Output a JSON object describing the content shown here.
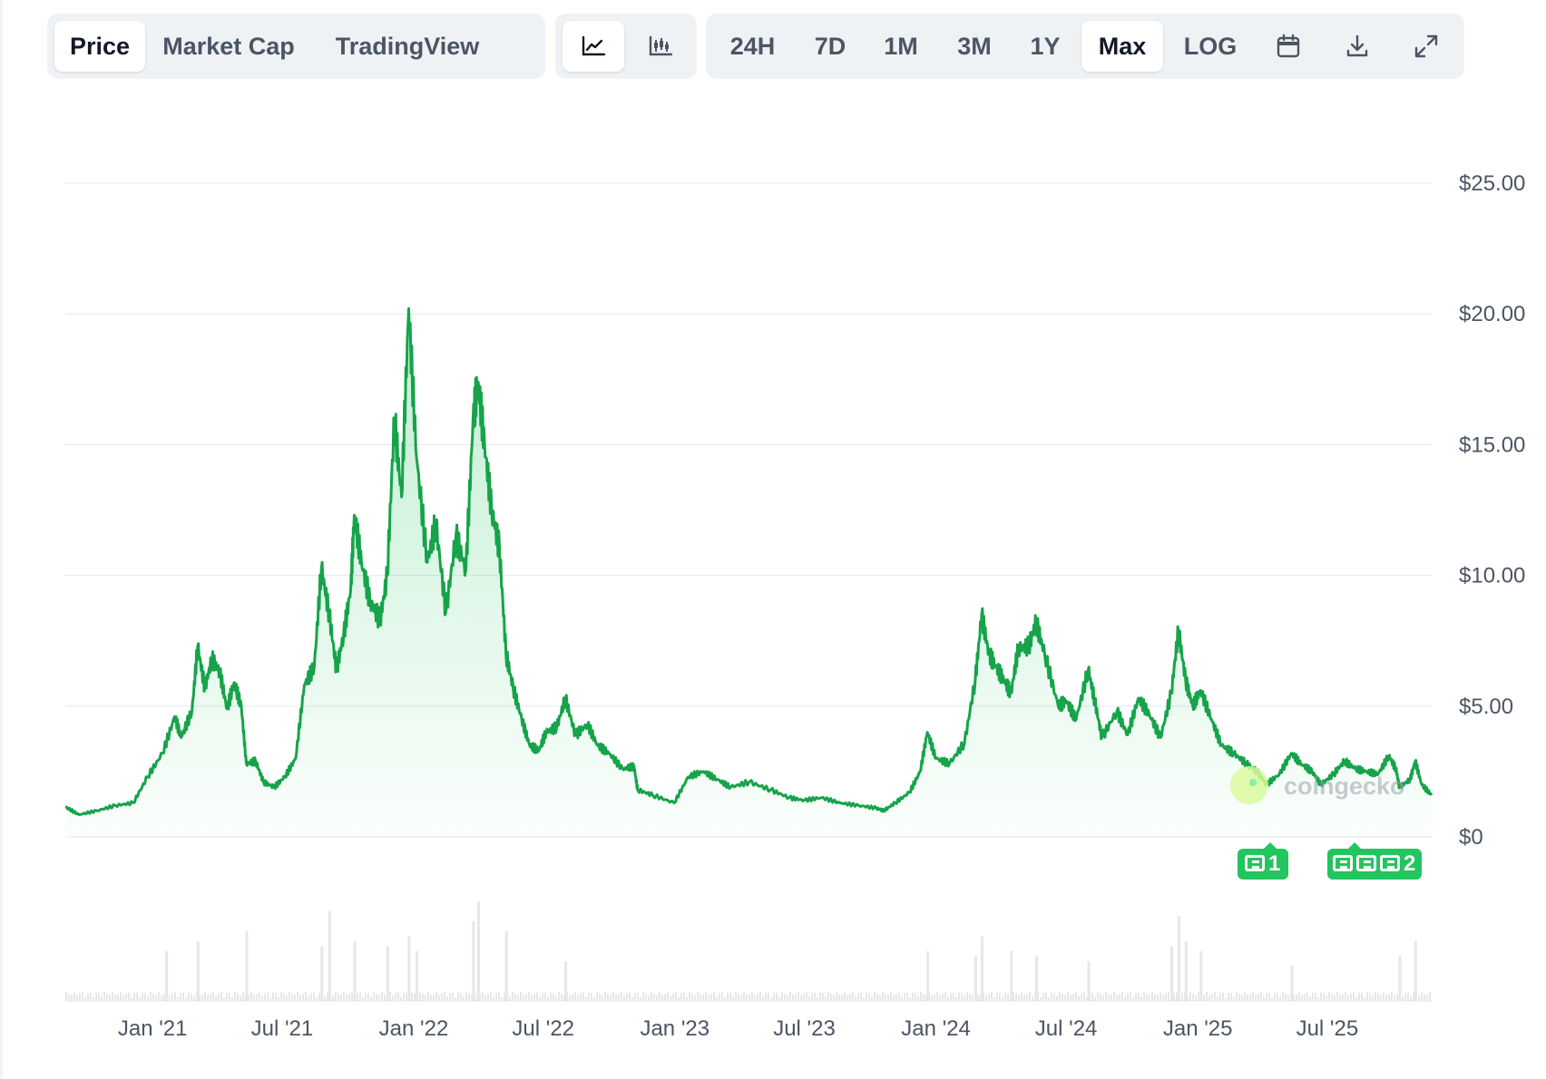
{
  "toolbar": {
    "views": [
      "Price",
      "Market Cap",
      "TradingView"
    ],
    "active_view": "Price",
    "chart_styles": [
      "line-chart-icon",
      "candlestick-icon"
    ],
    "active_style": "line-chart-icon",
    "ranges": [
      "24H",
      "7D",
      "1M",
      "3M",
      "1Y",
      "Max",
      "LOG"
    ],
    "active_range": "Max",
    "actions": [
      "calendar-icon",
      "download-icon",
      "expand-icon"
    ]
  },
  "watermark": "coingecko",
  "news_markers": [
    {
      "label": "1"
    },
    {
      "label": "2"
    }
  ],
  "colors": {
    "line": "#16a34a",
    "area": "#22c55e",
    "badge": "#22c55e",
    "grid": "#e5e7eb",
    "volume": "#e5e7eb"
  },
  "chart_data": {
    "type": "area",
    "x_start": "2020-09-01",
    "x_end": "2025-11-24",
    "yticks": [
      "$0",
      "$5.00",
      "$10.00",
      "$15.00",
      "$20.00",
      "$25.00"
    ],
    "ylim": [
      0,
      25
    ],
    "xticks": [
      {
        "label": "Jan '21",
        "date": "2021-01-01"
      },
      {
        "label": "Jul '21",
        "date": "2021-07-01"
      },
      {
        "label": "Jan '22",
        "date": "2022-01-01"
      },
      {
        "label": "Jul '22",
        "date": "2022-07-01"
      },
      {
        "label": "Jan '23",
        "date": "2023-01-01"
      },
      {
        "label": "Jul '23",
        "date": "2023-07-01"
      },
      {
        "label": "Jan '24",
        "date": "2024-01-01"
      },
      {
        "label": "Jul '24",
        "date": "2024-07-01"
      },
      {
        "label": "Jan '25",
        "date": "2025-01-01"
      },
      {
        "label": "Jul '25",
        "date": "2025-07-01"
      }
    ],
    "grid": true,
    "volume_subchart": true,
    "price": [
      [
        "2020-09-01",
        1.15
      ],
      [
        "2020-09-20",
        0.85
      ],
      [
        "2020-10-15",
        1.0
      ],
      [
        "2020-11-10",
        1.2
      ],
      [
        "2020-12-05",
        1.3
      ],
      [
        "2020-12-25",
        2.3
      ],
      [
        "2021-01-15",
        3.2
      ],
      [
        "2021-02-01",
        4.6
      ],
      [
        "2021-02-10",
        3.8
      ],
      [
        "2021-02-25",
        4.8
      ],
      [
        "2021-03-05",
        7.3
      ],
      [
        "2021-03-15",
        5.7
      ],
      [
        "2021-03-25",
        6.8
      ],
      [
        "2021-04-05",
        6.3
      ],
      [
        "2021-04-15",
        4.9
      ],
      [
        "2021-04-25",
        5.9
      ],
      [
        "2021-05-05",
        5.0
      ],
      [
        "2021-05-12",
        2.8
      ],
      [
        "2021-05-25",
        2.9
      ],
      [
        "2021-06-05",
        2.1
      ],
      [
        "2021-06-20",
        1.9
      ],
      [
        "2021-07-05",
        2.3
      ],
      [
        "2021-07-20",
        3.0
      ],
      [
        "2021-08-01",
        5.8
      ],
      [
        "2021-08-15",
        6.5
      ],
      [
        "2021-08-25",
        10.3
      ],
      [
        "2021-09-05",
        8.5
      ],
      [
        "2021-09-15",
        6.4
      ],
      [
        "2021-09-25",
        7.7
      ],
      [
        "2021-10-05",
        9.5
      ],
      [
        "2021-10-10",
        12.3
      ],
      [
        "2021-10-20",
        10.5
      ],
      [
        "2021-11-01",
        9.0
      ],
      [
        "2021-11-15",
        8.3
      ],
      [
        "2021-11-25",
        10.0
      ],
      [
        "2021-12-05",
        16.0
      ],
      [
        "2021-12-15",
        13.0
      ],
      [
        "2021-12-25",
        20.2
      ],
      [
        "2022-01-05",
        14.5
      ],
      [
        "2022-01-20",
        10.5
      ],
      [
        "2022-02-01",
        12.0
      ],
      [
        "2022-02-15",
        8.6
      ],
      [
        "2022-03-01",
        11.5
      ],
      [
        "2022-03-15",
        10.2
      ],
      [
        "2022-03-25",
        16.0
      ],
      [
        "2022-04-01",
        17.4
      ],
      [
        "2022-04-10",
        15.0
      ],
      [
        "2022-04-20",
        12.5
      ],
      [
        "2022-05-01",
        11.0
      ],
      [
        "2022-05-10",
        7.0
      ],
      [
        "2022-05-20",
        5.7
      ],
      [
        "2022-06-01",
        4.5
      ],
      [
        "2022-06-12",
        3.5
      ],
      [
        "2022-06-25",
        3.3
      ],
      [
        "2022-07-05",
        4.0
      ],
      [
        "2022-07-20",
        4.2
      ],
      [
        "2022-08-01",
        5.3
      ],
      [
        "2022-08-15",
        3.9
      ],
      [
        "2022-09-01",
        4.3
      ],
      [
        "2022-09-15",
        3.5
      ],
      [
        "2022-10-01",
        3.2
      ],
      [
        "2022-10-20",
        2.6
      ],
      [
        "2022-11-05",
        2.7
      ],
      [
        "2022-11-10",
        1.8
      ],
      [
        "2022-12-01",
        1.6
      ],
      [
        "2022-12-31",
        1.3
      ],
      [
        "2023-01-20",
        2.3
      ],
      [
        "2023-02-10",
        2.5
      ],
      [
        "2023-03-01",
        2.2
      ],
      [
        "2023-03-20",
        1.9
      ],
      [
        "2023-04-15",
        2.1
      ],
      [
        "2023-05-15",
        1.8
      ],
      [
        "2023-06-10",
        1.5
      ],
      [
        "2023-07-01",
        1.4
      ],
      [
        "2023-07-25",
        1.5
      ],
      [
        "2023-08-20",
        1.3
      ],
      [
        "2023-09-15",
        1.2
      ],
      [
        "2023-10-10",
        1.1
      ],
      [
        "2023-10-20",
        1.0
      ],
      [
        "2023-11-05",
        1.3
      ],
      [
        "2023-11-25",
        1.7
      ],
      [
        "2023-12-10",
        2.5
      ],
      [
        "2023-12-20",
        4.0
      ],
      [
        "2024-01-01",
        3.0
      ],
      [
        "2024-01-20",
        2.8
      ],
      [
        "2024-02-10",
        3.6
      ],
      [
        "2024-02-25",
        6.0
      ],
      [
        "2024-03-05",
        8.5
      ],
      [
        "2024-03-15",
        7.0
      ],
      [
        "2024-03-25",
        6.5
      ],
      [
        "2024-04-05",
        6.0
      ],
      [
        "2024-04-15",
        5.5
      ],
      [
        "2024-04-25",
        7.2
      ],
      [
        "2024-05-10",
        7.3
      ],
      [
        "2024-05-20",
        8.2
      ],
      [
        "2024-06-01",
        7.0
      ],
      [
        "2024-06-20",
        5.0
      ],
      [
        "2024-07-01",
        5.2
      ],
      [
        "2024-07-15",
        4.5
      ],
      [
        "2024-08-01",
        6.4
      ],
      [
        "2024-08-10",
        5.2
      ],
      [
        "2024-08-20",
        3.8
      ],
      [
        "2024-09-10",
        4.8
      ],
      [
        "2024-09-25",
        3.9
      ],
      [
        "2024-10-10",
        5.3
      ],
      [
        "2024-10-25",
        4.7
      ],
      [
        "2024-11-10",
        3.8
      ],
      [
        "2024-11-25",
        5.5
      ],
      [
        "2024-12-05",
        7.9
      ],
      [
        "2024-12-15",
        6.0
      ],
      [
        "2024-12-25",
        5.0
      ],
      [
        "2025-01-05",
        5.6
      ],
      [
        "2025-01-20",
        4.5
      ],
      [
        "2025-02-03",
        3.5
      ],
      [
        "2025-02-20",
        3.2
      ],
      [
        "2025-03-10",
        2.8
      ],
      [
        "2025-03-25",
        2.5
      ],
      [
        "2025-04-07",
        2.0
      ],
      [
        "2025-04-25",
        2.4
      ],
      [
        "2025-05-12",
        3.2
      ],
      [
        "2025-05-25",
        2.8
      ],
      [
        "2025-06-10",
        2.5
      ],
      [
        "2025-06-22",
        2.0
      ],
      [
        "2025-07-10",
        2.4
      ],
      [
        "2025-07-25",
        2.9
      ],
      [
        "2025-08-10",
        2.6
      ],
      [
        "2025-08-25",
        2.5
      ],
      [
        "2025-09-10",
        2.4
      ],
      [
        "2025-09-25",
        3.1
      ],
      [
        "2025-10-05",
        2.6
      ],
      [
        "2025-10-10",
        1.9
      ],
      [
        "2025-10-25",
        2.2
      ],
      [
        "2025-11-01",
        2.9
      ],
      [
        "2025-11-10",
        2.0
      ],
      [
        "2025-11-24",
        1.6
      ]
    ],
    "volume_spikes": [
      [
        "2021-01-20",
        0.5
      ],
      [
        "2021-03-05",
        0.6
      ],
      [
        "2021-05-12",
        0.7
      ],
      [
        "2021-08-25",
        0.55
      ],
      [
        "2021-09-05",
        0.9
      ],
      [
        "2021-10-10",
        0.6
      ],
      [
        "2021-11-25",
        0.55
      ],
      [
        "2021-12-25",
        0.65
      ],
      [
        "2022-01-05",
        0.5
      ],
      [
        "2022-03-25",
        0.8
      ],
      [
        "2022-04-01",
        1.0
      ],
      [
        "2022-05-10",
        0.7
      ],
      [
        "2022-08-01",
        0.4
      ],
      [
        "2023-12-20",
        0.5
      ],
      [
        "2024-02-25",
        0.45
      ],
      [
        "2024-03-05",
        0.65
      ],
      [
        "2024-04-15",
        0.5
      ],
      [
        "2024-05-20",
        0.45
      ],
      [
        "2024-08-01",
        0.4
      ],
      [
        "2024-11-25",
        0.55
      ],
      [
        "2024-12-05",
        0.85
      ],
      [
        "2024-12-15",
        0.6
      ],
      [
        "2025-01-05",
        0.5
      ],
      [
        "2025-05-12",
        0.35
      ],
      [
        "2025-10-10",
        0.45
      ],
      [
        "2025-11-01",
        0.6
      ]
    ]
  }
}
